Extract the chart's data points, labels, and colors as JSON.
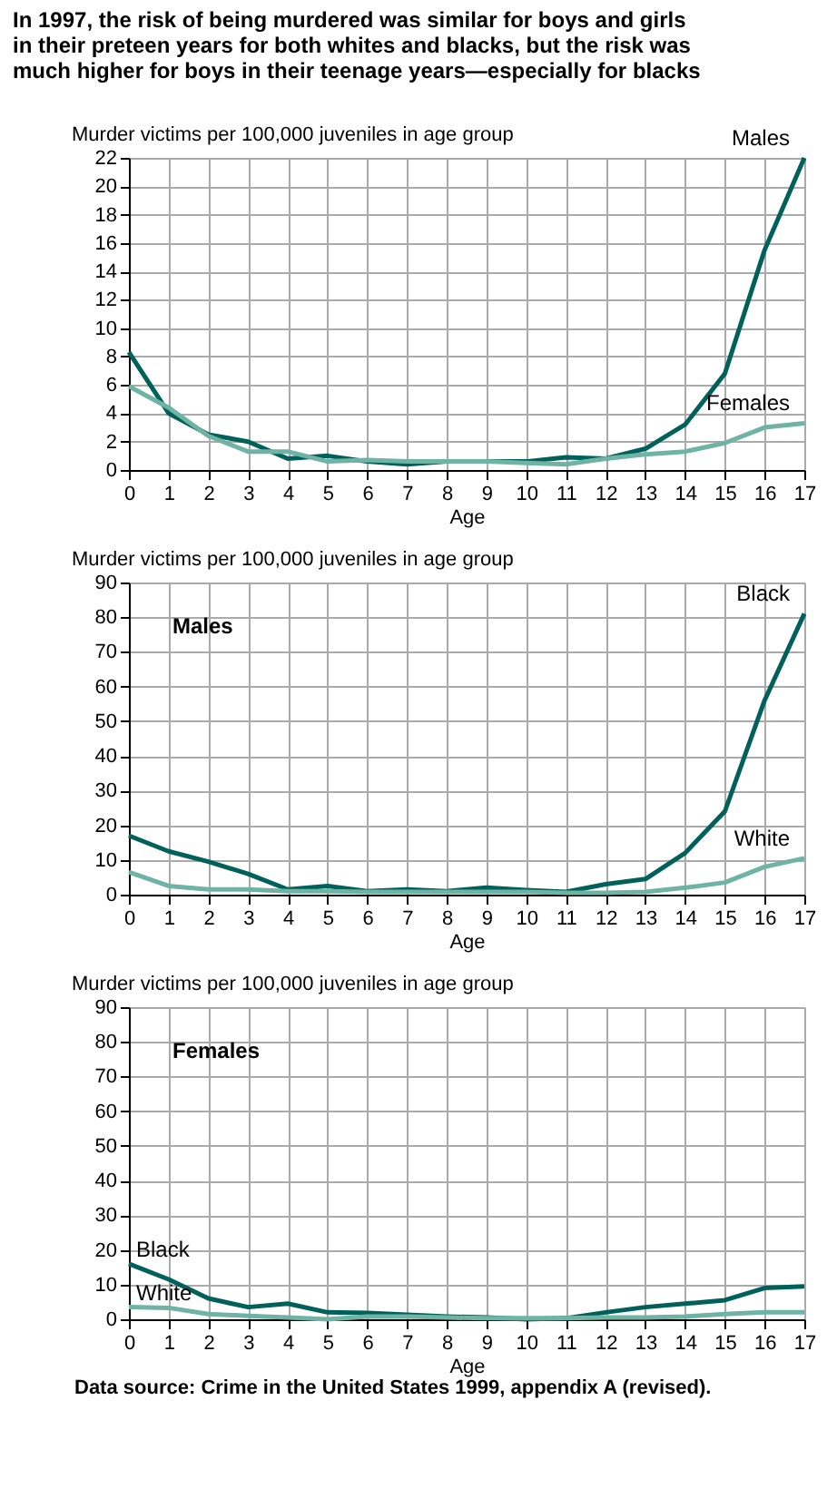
{
  "chart_data": [
    {
      "type": "line",
      "title": "In 1997, the risk of being murdered was similar for boys and girls in their preteen years for both whites and blacks, but the risk was much higher for boys in their teenage years—especially for blacks",
      "xlabel": "Age",
      "ylabel": "Murder victims per 100,000 juveniles in age group",
      "x": [
        0,
        1,
        2,
        3,
        4,
        5,
        6,
        7,
        8,
        9,
        10,
        11,
        12,
        13,
        14,
        15,
        16,
        17
      ],
      "xlim": [
        0,
        17
      ],
      "xticks": [
        0,
        1,
        2,
        3,
        4,
        5,
        6,
        7,
        8,
        9,
        10,
        11,
        12,
        13,
        14,
        15,
        16,
        17
      ],
      "ylim": [
        0,
        22
      ],
      "yticks": [
        0,
        2,
        4,
        6,
        8,
        10,
        12,
        14,
        16,
        18,
        20,
        22
      ],
      "grid": true,
      "line_style": "solid",
      "series": [
        {
          "name": "Males",
          "color": "#00605a",
          "values": [
            8.3,
            4,
            2.5,
            2,
            0.8,
            1,
            0.6,
            0.4,
            0.6,
            0.6,
            0.6,
            0.9,
            0.8,
            1.5,
            3.2,
            6.8,
            15.5,
            22
          ]
        },
        {
          "name": "Females",
          "color": "#6fb3a5",
          "values": [
            5.9,
            4.4,
            2.4,
            1.3,
            1.3,
            0.6,
            0.7,
            0.6,
            0.6,
            0.6,
            0.5,
            0.4,
            0.8,
            1.1,
            1.3,
            1.9,
            3,
            3.3
          ]
        }
      ]
    },
    {
      "type": "line",
      "subtitle": "Males",
      "xlabel": "Age",
      "ylabel": "Murder victims per 100,000 juveniles in age group",
      "x": [
        0,
        1,
        2,
        3,
        4,
        5,
        6,
        7,
        8,
        9,
        10,
        11,
        12,
        13,
        14,
        15,
        16,
        17
      ],
      "xlim": [
        0,
        17
      ],
      "xticks": [
        0,
        1,
        2,
        3,
        4,
        5,
        6,
        7,
        8,
        9,
        10,
        11,
        12,
        13,
        14,
        15,
        16,
        17
      ],
      "ylim": [
        0,
        90
      ],
      "yticks": [
        0,
        10,
        20,
        30,
        40,
        50,
        60,
        70,
        80,
        90
      ],
      "grid": true,
      "line_style": "solid",
      "series": [
        {
          "name": "Black",
          "color": "#00605a",
          "values": [
            17,
            12.5,
            9.5,
            6,
            1.5,
            2.5,
            1,
            1.5,
            1,
            2,
            1.3,
            0.8,
            3,
            4.5,
            12,
            24,
            56,
            81
          ]
        },
        {
          "name": "White",
          "color": "#6fb3a5",
          "values": [
            6.5,
            2.5,
            1.5,
            1.5,
            1,
            1,
            0.8,
            0.8,
            0.8,
            0.8,
            0.8,
            0.5,
            0.5,
            0.8,
            2,
            3.5,
            8,
            10.5
          ]
        }
      ]
    },
    {
      "type": "line",
      "subtitle": "Females",
      "xlabel": "Age",
      "ylabel": "Murder victims per 100,000 juveniles in age group",
      "x": [
        0,
        1,
        2,
        3,
        4,
        5,
        6,
        7,
        8,
        9,
        10,
        11,
        12,
        13,
        14,
        15,
        16,
        17
      ],
      "xlim": [
        0,
        17
      ],
      "xticks": [
        0,
        1,
        2,
        3,
        4,
        5,
        6,
        7,
        8,
        9,
        10,
        11,
        12,
        13,
        14,
        15,
        16,
        17
      ],
      "ylim": [
        0,
        90
      ],
      "yticks": [
        0,
        10,
        20,
        30,
        40,
        50,
        60,
        70,
        80,
        90
      ],
      "grid": true,
      "line_style": "solid",
      "annotations": [
        "Data source: Crime in the United States 1999, appendix A (revised)."
      ],
      "series": [
        {
          "name": "Black",
          "color": "#00605a",
          "values": [
            16,
            11.5,
            6,
            3.5,
            4.5,
            2,
            1.8,
            1.3,
            0.8,
            0.5,
            0,
            0.3,
            2,
            3.5,
            4.5,
            5.5,
            9,
            9.5
          ]
        },
        {
          "name": "White",
          "color": "#6fb3a5",
          "values": [
            3.5,
            3.3,
            1.5,
            1,
            0.5,
            0,
            0.8,
            0.8,
            0.5,
            0.3,
            0.3,
            0.3,
            0.5,
            0.5,
            0.8,
            1.5,
            2,
            2
          ]
        }
      ]
    }
  ]
}
